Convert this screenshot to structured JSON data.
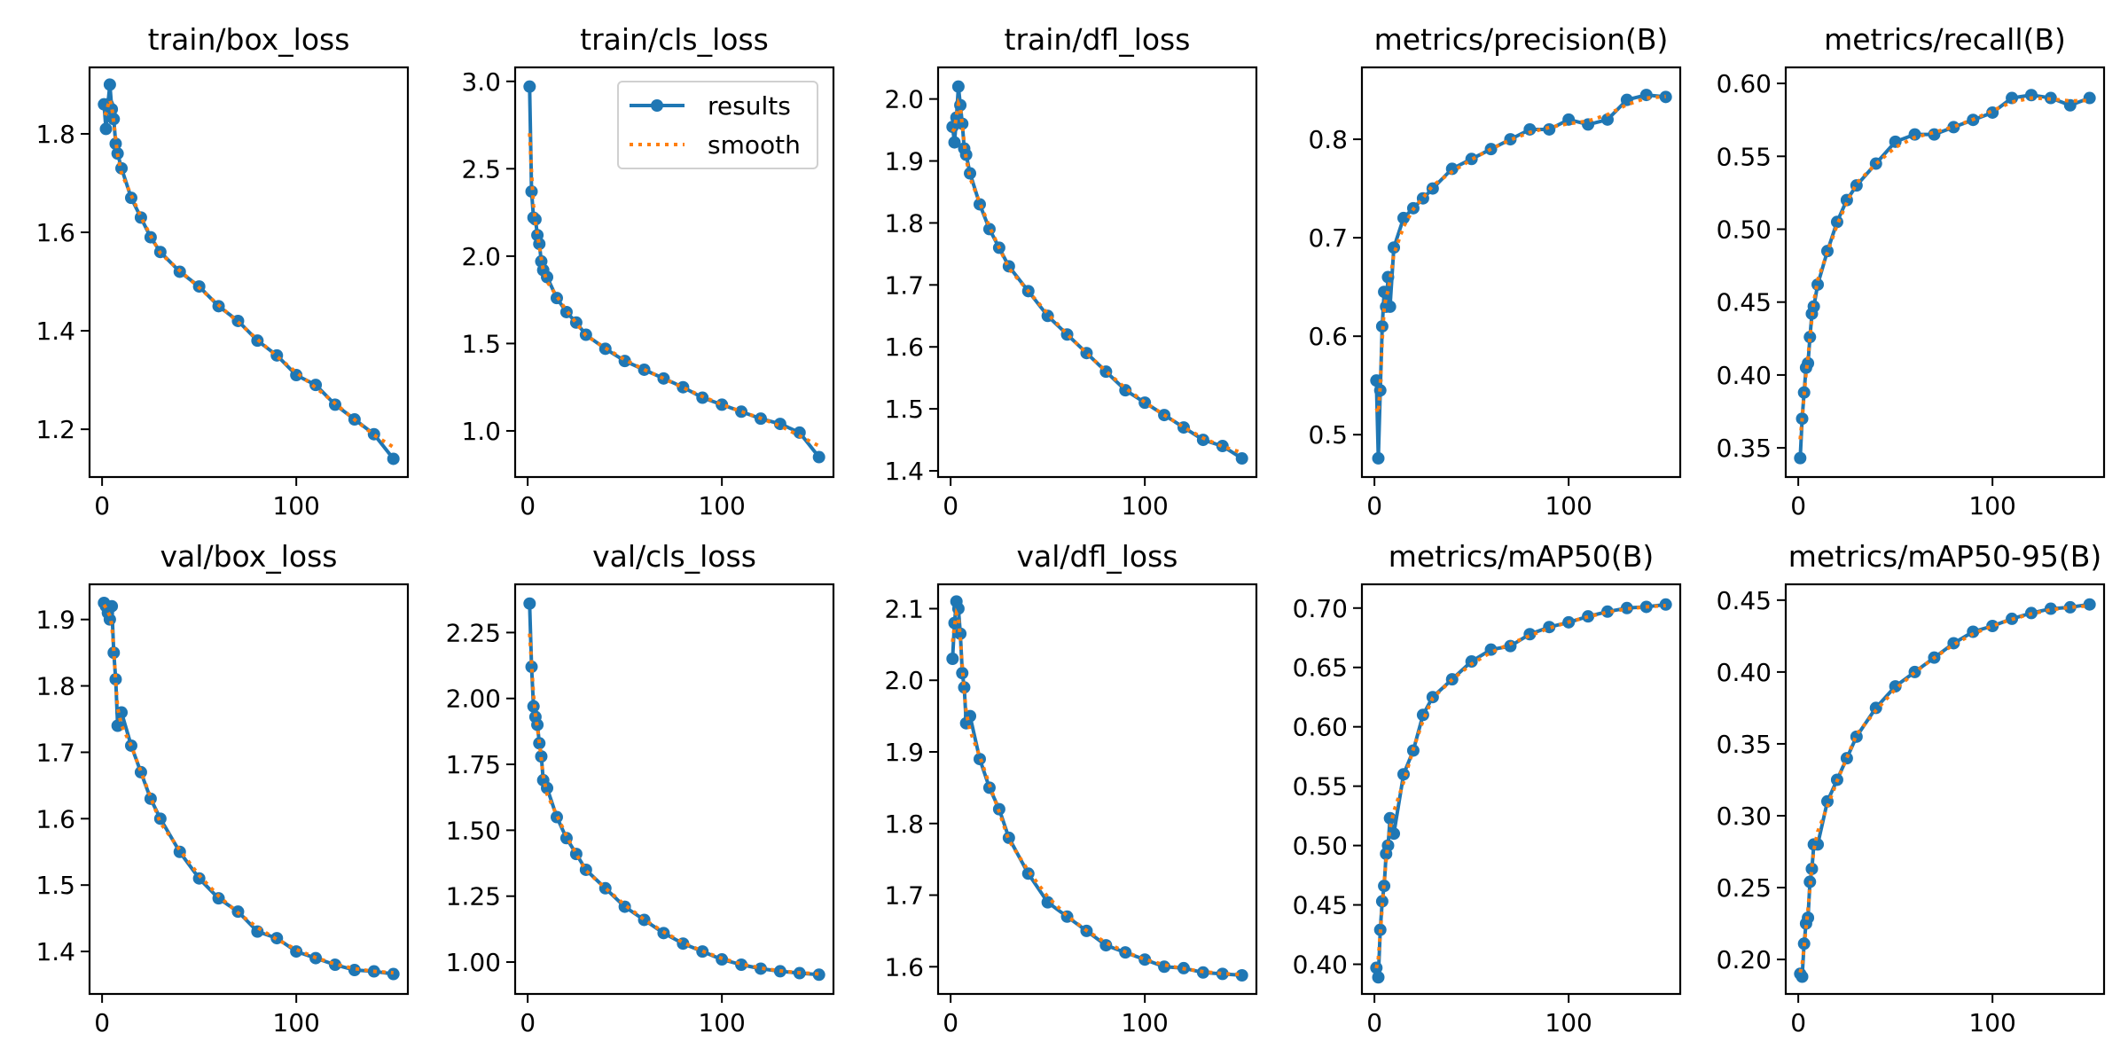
{
  "colors": {
    "results": "#1f77b4",
    "smooth": "#ff7f0e",
    "frame": "#000000"
  },
  "legend": {
    "entries": [
      "results",
      "smooth"
    ],
    "placement": "top-right",
    "panel": "train/cls_loss"
  },
  "chart_data": [
    {
      "type": "line",
      "title": "train/box_loss",
      "xlim": [
        -6.45,
        157.45
      ],
      "xticks": [
        0,
        100
      ],
      "xtick_labels": [
        "0",
        "100"
      ],
      "ylim": [
        1.103,
        1.935
      ],
      "yticks": [
        1.2,
        1.4,
        1.6,
        1.8
      ],
      "ytick_labels": [
        "1.2",
        "1.4",
        "1.6",
        "1.8"
      ],
      "x": [
        1,
        2,
        3,
        4,
        5,
        6,
        7,
        8,
        10,
        15,
        20,
        25,
        30,
        40,
        50,
        60,
        70,
        80,
        90,
        100,
        110,
        120,
        130,
        140,
        150
      ],
      "series": [
        {
          "name": "results",
          "values": [
            1.86,
            1.81,
            1.86,
            1.9,
            1.85,
            1.83,
            1.78,
            1.76,
            1.73,
            1.67,
            1.63,
            1.59,
            1.56,
            1.52,
            1.49,
            1.45,
            1.42,
            1.38,
            1.35,
            1.31,
            1.29,
            1.25,
            1.22,
            1.19,
            1.14
          ]
        }
      ]
    },
    {
      "type": "line",
      "title": "train/cls_loss",
      "xlim": [
        -6.45,
        157.45
      ],
      "xticks": [
        0,
        100
      ],
      "xtick_labels": [
        "0",
        "100"
      ],
      "ylim": [
        0.736,
        3.08
      ],
      "yticks": [
        1.0,
        1.5,
        2.0,
        2.5,
        3.0
      ],
      "ytick_labels": [
        "1.0",
        "1.5",
        "2.0",
        "2.5",
        "3.0"
      ],
      "x": [
        1,
        2,
        3,
        4,
        5,
        6,
        7,
        8,
        10,
        15,
        20,
        25,
        30,
        40,
        50,
        60,
        70,
        80,
        90,
        100,
        110,
        120,
        130,
        140,
        150
      ],
      "series": [
        {
          "name": "results",
          "values": [
            2.97,
            2.37,
            2.22,
            2.21,
            2.12,
            2.07,
            1.97,
            1.92,
            1.88,
            1.76,
            1.68,
            1.62,
            1.55,
            1.47,
            1.4,
            1.35,
            1.3,
            1.25,
            1.19,
            1.15,
            1.11,
            1.07,
            1.04,
            0.99,
            0.85
          ]
        }
      ]
    },
    {
      "type": "line",
      "title": "train/dfl_loss",
      "xlim": [
        -6.45,
        157.45
      ],
      "xticks": [
        0,
        100
      ],
      "xtick_labels": [
        "0",
        "100"
      ],
      "ylim": [
        1.39,
        2.051
      ],
      "yticks": [
        1.4,
        1.5,
        1.6,
        1.7,
        1.8,
        1.9,
        2.0
      ],
      "ytick_labels": [
        "1.4",
        "1.5",
        "1.6",
        "1.7",
        "1.8",
        "1.9",
        "2.0"
      ],
      "x": [
        1,
        2,
        3,
        4,
        5,
        6,
        7,
        8,
        10,
        15,
        20,
        25,
        30,
        40,
        50,
        60,
        70,
        80,
        90,
        100,
        110,
        120,
        130,
        140,
        150
      ],
      "series": [
        {
          "name": "results",
          "values": [
            1.955,
            1.93,
            1.97,
            2.02,
            1.99,
            1.96,
            1.92,
            1.91,
            1.88,
            1.83,
            1.79,
            1.76,
            1.73,
            1.69,
            1.65,
            1.62,
            1.59,
            1.56,
            1.53,
            1.51,
            1.49,
            1.47,
            1.45,
            1.44,
            1.42
          ]
        }
      ]
    },
    {
      "type": "line",
      "title": "metrics/precision(B)",
      "xlim": [
        -6.45,
        157.45
      ],
      "xticks": [
        0,
        100
      ],
      "xtick_labels": [
        "0",
        "100"
      ],
      "ylim": [
        0.457,
        0.873
      ],
      "yticks": [
        0.5,
        0.6,
        0.7,
        0.8
      ],
      "ytick_labels": [
        "0.5",
        "0.6",
        "0.7",
        "0.8"
      ],
      "x": [
        1,
        2,
        3,
        4,
        5,
        6,
        7,
        8,
        10,
        15,
        20,
        25,
        30,
        40,
        50,
        60,
        70,
        80,
        90,
        100,
        110,
        120,
        130,
        140,
        150
      ],
      "series": [
        {
          "name": "results",
          "values": [
            0.555,
            0.476,
            0.545,
            0.61,
            0.645,
            0.63,
            0.66,
            0.63,
            0.69,
            0.72,
            0.73,
            0.74,
            0.75,
            0.77,
            0.78,
            0.79,
            0.8,
            0.81,
            0.81,
            0.82,
            0.815,
            0.82,
            0.84,
            0.845,
            0.843
          ]
        }
      ]
    },
    {
      "type": "line",
      "title": "metrics/recall(B)",
      "xlim": [
        -6.45,
        157.45
      ],
      "xticks": [
        0,
        100
      ],
      "xtick_labels": [
        "0",
        "100"
      ],
      "ylim": [
        0.33,
        0.611
      ],
      "yticks": [
        0.35,
        0.4,
        0.45,
        0.5,
        0.55,
        0.6
      ],
      "ytick_labels": [
        "0.35",
        "0.40",
        "0.45",
        "0.50",
        "0.55",
        "0.60"
      ],
      "x": [
        1,
        2,
        3,
        4,
        5,
        6,
        7,
        8,
        10,
        15,
        20,
        25,
        30,
        40,
        50,
        60,
        70,
        80,
        90,
        100,
        110,
        120,
        130,
        140,
        150
      ],
      "series": [
        {
          "name": "results",
          "values": [
            0.343,
            0.37,
            0.388,
            0.405,
            0.408,
            0.426,
            0.442,
            0.447,
            0.462,
            0.485,
            0.505,
            0.52,
            0.53,
            0.545,
            0.56,
            0.565,
            0.565,
            0.57,
            0.575,
            0.58,
            0.59,
            0.592,
            0.59,
            0.585,
            0.59
          ]
        }
      ]
    },
    {
      "type": "line",
      "title": "val/box_loss",
      "xlim": [
        -6.45,
        157.45
      ],
      "xticks": [
        0,
        100
      ],
      "xtick_labels": [
        "0",
        "100"
      ],
      "ylim": [
        1.336,
        1.953
      ],
      "yticks": [
        1.4,
        1.5,
        1.6,
        1.7,
        1.8,
        1.9
      ],
      "ytick_labels": [
        "1.4",
        "1.5",
        "1.6",
        "1.7",
        "1.8",
        "1.9"
      ],
      "x": [
        1,
        2,
        3,
        4,
        5,
        6,
        7,
        8,
        10,
        15,
        20,
        25,
        30,
        40,
        50,
        60,
        70,
        80,
        90,
        100,
        110,
        120,
        130,
        140,
        150
      ],
      "series": [
        {
          "name": "results",
          "values": [
            1.925,
            1.92,
            1.91,
            1.9,
            1.92,
            1.85,
            1.81,
            1.74,
            1.76,
            1.71,
            1.67,
            1.63,
            1.6,
            1.55,
            1.51,
            1.48,
            1.46,
            1.43,
            1.42,
            1.4,
            1.39,
            1.38,
            1.372,
            1.37,
            1.366
          ]
        }
      ]
    },
    {
      "type": "line",
      "title": "val/cls_loss",
      "xlim": [
        -6.45,
        157.45
      ],
      "xticks": [
        0,
        100
      ],
      "xtick_labels": [
        "0",
        "100"
      ],
      "ylim": [
        0.879,
        2.433
      ],
      "yticks": [
        1.0,
        1.25,
        1.5,
        1.75,
        2.0,
        2.25
      ],
      "ytick_labels": [
        "1.00",
        "1.25",
        "1.50",
        "1.75",
        "2.00",
        "2.25"
      ],
      "x": [
        1,
        2,
        3,
        4,
        5,
        6,
        7,
        8,
        10,
        15,
        20,
        25,
        30,
        40,
        50,
        60,
        70,
        80,
        90,
        100,
        110,
        120,
        130,
        140,
        150
      ],
      "series": [
        {
          "name": "results",
          "values": [
            2.36,
            2.12,
            1.97,
            1.93,
            1.9,
            1.83,
            1.78,
            1.69,
            1.66,
            1.55,
            1.47,
            1.41,
            1.35,
            1.28,
            1.21,
            1.16,
            1.11,
            1.07,
            1.04,
            1.01,
            0.99,
            0.975,
            0.965,
            0.958,
            0.952
          ]
        }
      ]
    },
    {
      "type": "line",
      "title": "val/dfl_loss",
      "xlim": [
        -6.45,
        157.45
      ],
      "xticks": [
        0,
        100
      ],
      "xtick_labels": [
        "0",
        "100"
      ],
      "ylim": [
        1.562,
        2.134
      ],
      "yticks": [
        1.6,
        1.7,
        1.8,
        1.9,
        2.0,
        2.1
      ],
      "ytick_labels": [
        "1.6",
        "1.7",
        "1.8",
        "1.9",
        "2.0",
        "2.1"
      ],
      "x": [
        1,
        2,
        3,
        4,
        5,
        6,
        7,
        8,
        10,
        15,
        20,
        25,
        30,
        40,
        50,
        60,
        70,
        80,
        90,
        100,
        110,
        120,
        130,
        140,
        150
      ],
      "series": [
        {
          "name": "results",
          "values": [
            2.03,
            2.08,
            2.11,
            2.1,
            2.065,
            2.01,
            1.99,
            1.94,
            1.95,
            1.89,
            1.85,
            1.82,
            1.78,
            1.73,
            1.69,
            1.67,
            1.65,
            1.63,
            1.62,
            1.61,
            1.6,
            1.598,
            1.592,
            1.59,
            1.588
          ]
        }
      ]
    },
    {
      "type": "line",
      "title": "metrics/mAP50(B)",
      "xlim": [
        -6.45,
        157.45
      ],
      "xticks": [
        0,
        100
      ],
      "xtick_labels": [
        "0",
        "100"
      ],
      "ylim": [
        0.375,
        0.72
      ],
      "yticks": [
        0.4,
        0.45,
        0.5,
        0.55,
        0.6,
        0.65,
        0.7
      ],
      "ytick_labels": [
        "0.40",
        "0.45",
        "0.50",
        "0.55",
        "0.60",
        "0.65",
        "0.70"
      ],
      "x": [
        1,
        2,
        3,
        4,
        5,
        6,
        7,
        8,
        10,
        15,
        20,
        25,
        30,
        40,
        50,
        60,
        70,
        80,
        90,
        100,
        110,
        120,
        130,
        140,
        150
      ],
      "series": [
        {
          "name": "results",
          "values": [
            0.397,
            0.389,
            0.429,
            0.453,
            0.466,
            0.493,
            0.5,
            0.523,
            0.51,
            0.56,
            0.58,
            0.61,
            0.625,
            0.64,
            0.655,
            0.665,
            0.668,
            0.678,
            0.684,
            0.688,
            0.693,
            0.697,
            0.7,
            0.701,
            0.703
          ]
        }
      ]
    },
    {
      "type": "line",
      "title": "metrics/mAP50-95(B)",
      "xlim": [
        -6.45,
        157.45
      ],
      "xticks": [
        0,
        100
      ],
      "xtick_labels": [
        "0",
        "100"
      ],
      "ylim": [
        0.176,
        0.461
      ],
      "yticks": [
        0.2,
        0.25,
        0.3,
        0.35,
        0.4,
        0.45
      ],
      "ytick_labels": [
        "0.20",
        "0.25",
        "0.30",
        "0.35",
        "0.40",
        "0.45"
      ],
      "x": [
        1,
        2,
        3,
        4,
        5,
        6,
        7,
        8,
        10,
        15,
        20,
        25,
        30,
        40,
        50,
        60,
        70,
        80,
        90,
        100,
        110,
        120,
        130,
        140,
        150
      ],
      "series": [
        {
          "name": "results",
          "values": [
            0.19,
            0.188,
            0.211,
            0.225,
            0.229,
            0.254,
            0.263,
            0.28,
            0.28,
            0.31,
            0.325,
            0.34,
            0.355,
            0.375,
            0.39,
            0.4,
            0.41,
            0.42,
            0.428,
            0.432,
            0.437,
            0.441,
            0.444,
            0.445,
            0.447
          ]
        }
      ]
    }
  ]
}
